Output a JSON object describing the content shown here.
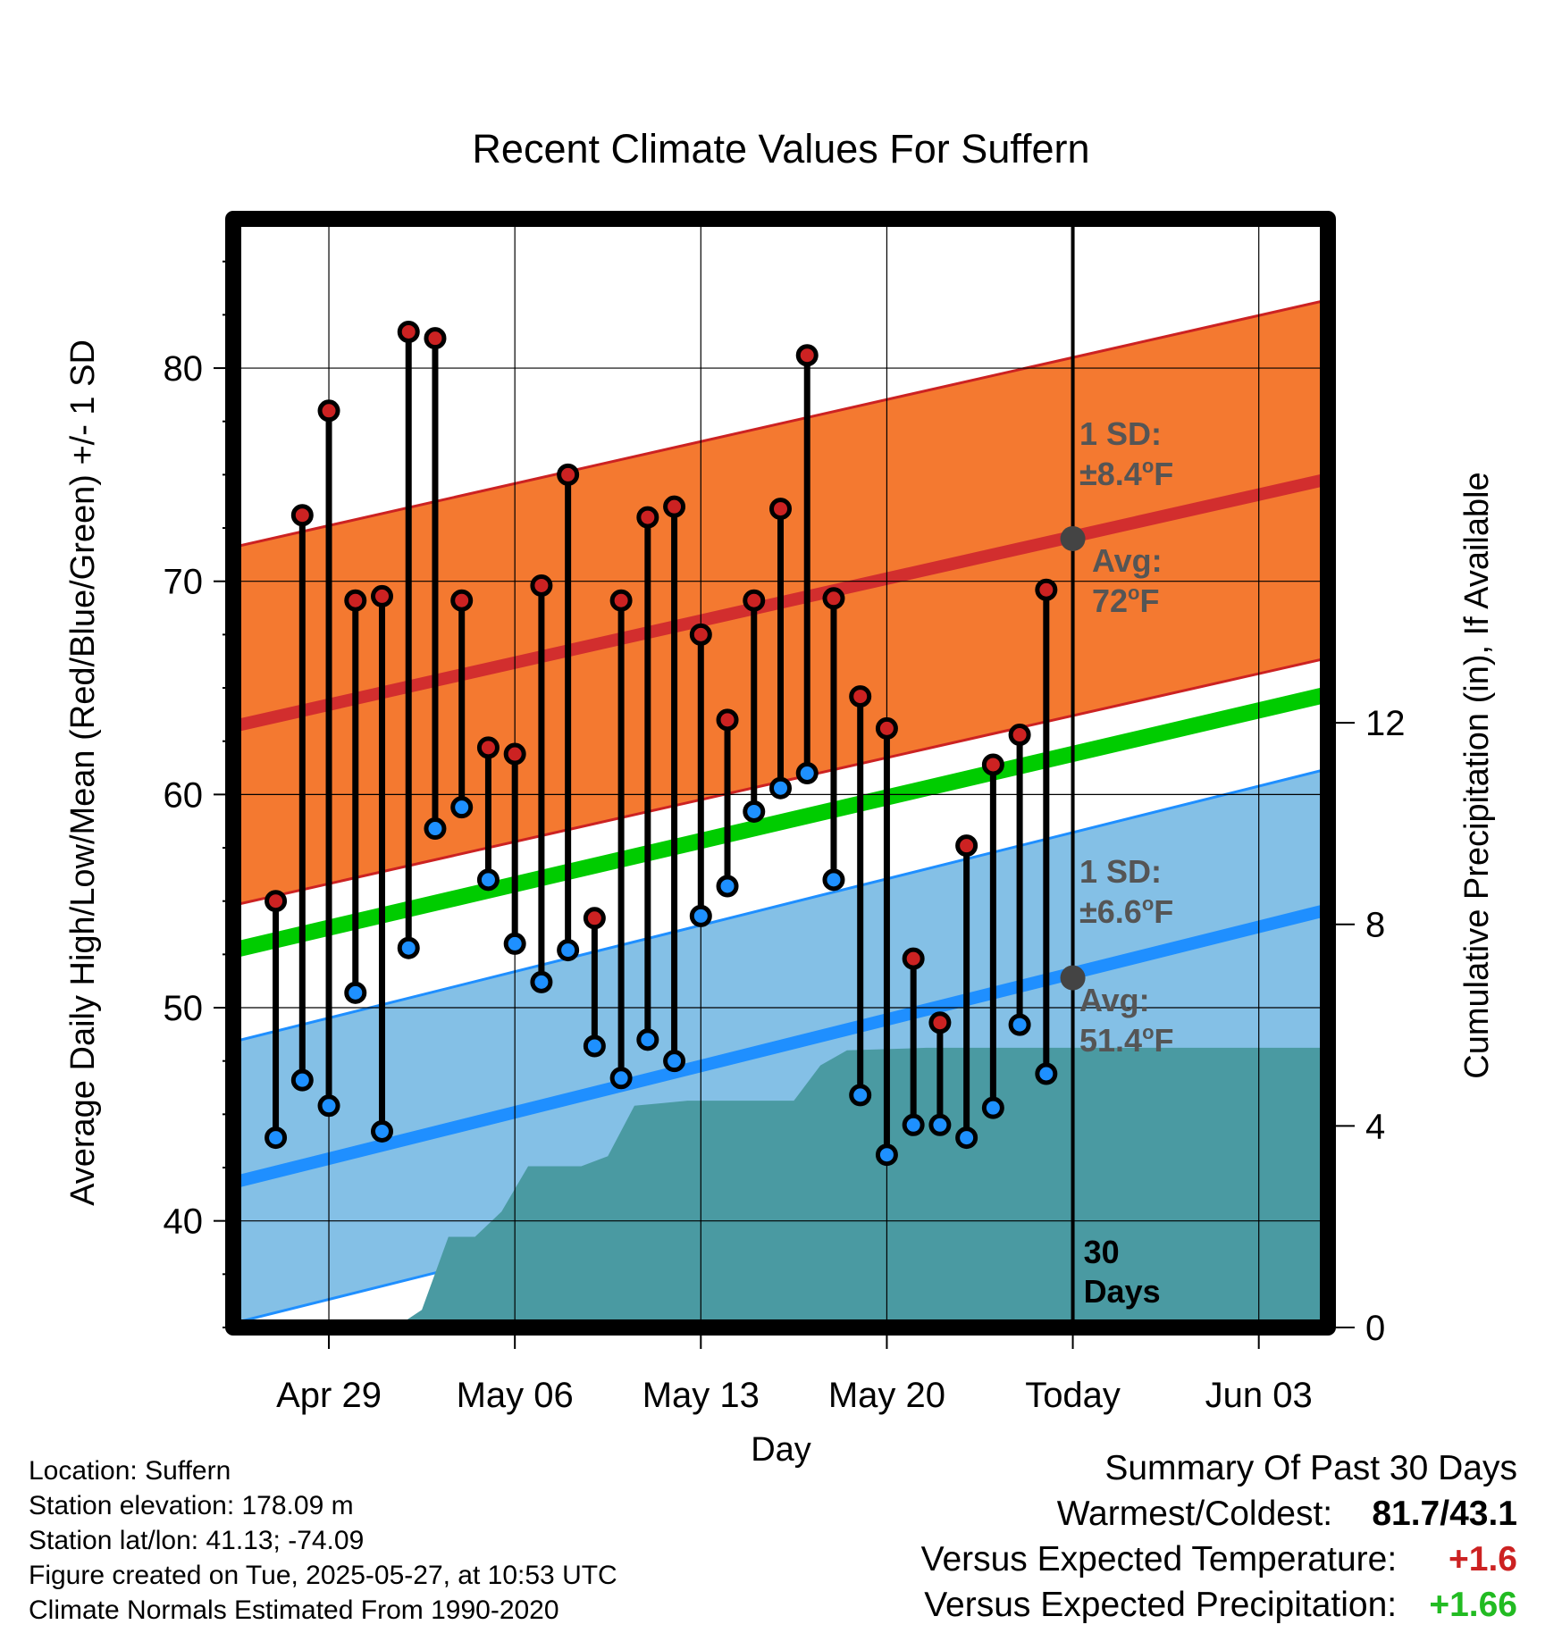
{
  "chart_data": {
    "type": "line",
    "title": "Recent Climate Values For Suffern",
    "xlabel": "Day",
    "ylabel": "Average Daily High/Low/Mean (Red/Blue/Green) +/- 1 SD",
    "y2label": "Cumulative Precipitation (in), If Available",
    "ylim": [
      35,
      87
    ],
    "y2lim": [
      0,
      22
    ],
    "x_tick_labels": [
      "Apr 29",
      "May 06",
      "May 13",
      "May 20",
      "Today",
      "Jun 03"
    ],
    "y_ticks": [
      40,
      50,
      60,
      70,
      80
    ],
    "y2_ticks": [
      0,
      4,
      8,
      12
    ],
    "grid": true,
    "xlim_days_from_apr26": [
      -0.6,
      40.6
    ],
    "today_day": 31,
    "today_label": [
      "30",
      "Days"
    ],
    "days": [
      "Apr 26",
      "Apr 27",
      "Apr 28",
      "Apr 29",
      "Apr 30",
      "May 01",
      "May 02",
      "May 03",
      "May 04",
      "May 05",
      "May 06",
      "May 07",
      "May 08",
      "May 09",
      "May 10",
      "May 11",
      "May 12",
      "May 13",
      "May 14",
      "May 15",
      "May 16",
      "May 17",
      "May 18",
      "May 19",
      "May 20",
      "May 21",
      "May 22",
      "May 23",
      "May 24",
      "May 25",
      "May 26"
    ],
    "observed_high": [
      55.0,
      73.1,
      78.0,
      69.1,
      69.3,
      81.7,
      81.4,
      69.1,
      62.2,
      61.9,
      69.8,
      75.0,
      54.2,
      69.1,
      73.0,
      73.5,
      67.5,
      63.5,
      69.1,
      73.4,
      80.6,
      69.2,
      64.6,
      63.1,
      52.3,
      49.3,
      57.6,
      61.4,
      62.8,
      69.6
    ],
    "observed_low": [
      43.9,
      46.6,
      45.4,
      50.7,
      44.2,
      52.8,
      58.4,
      59.4,
      56.0,
      53.0,
      51.2,
      52.7,
      48.2,
      46.7,
      48.5,
      47.5,
      54.3,
      55.7,
      59.2,
      60.3,
      61.0,
      56.0,
      45.9,
      43.1,
      44.5,
      44.5,
      43.9,
      45.3,
      49.2,
      46.9
    ],
    "normal_high": {
      "start": 63.2,
      "end": 74.8,
      "sd": 8.4,
      "today_avg": 72
    },
    "normal_low": {
      "start": 41.8,
      "end": 54.6,
      "sd": 6.6,
      "today_avg": 51.4
    },
    "normal_mean": {
      "start": 52.7,
      "end": 64.7
    },
    "cumulative_precip": [
      {
        "day": 5.5,
        "value": 0.0
      },
      {
        "day": 6.5,
        "value": 0.35
      },
      {
        "day": 7.5,
        "value": 1.8
      },
      {
        "day": 8.5,
        "value": 1.8
      },
      {
        "day": 9.5,
        "value": 2.3
      },
      {
        "day": 10.5,
        "value": 3.2
      },
      {
        "day": 11.5,
        "value": 3.2
      },
      {
        "day": 12.5,
        "value": 3.2
      },
      {
        "day": 13.5,
        "value": 3.4
      },
      {
        "day": 14.5,
        "value": 4.4
      },
      {
        "day": 15.5,
        "value": 4.45
      },
      {
        "day": 16.5,
        "value": 4.5
      },
      {
        "day": 17.5,
        "value": 4.5
      },
      {
        "day": 18.5,
        "value": 4.5
      },
      {
        "day": 20.5,
        "value": 4.5
      },
      {
        "day": 21.5,
        "value": 5.2
      },
      {
        "day": 22.5,
        "value": 5.5
      },
      {
        "day": 25.5,
        "value": 5.55
      },
      {
        "day": 40.6,
        "value": 5.55
      }
    ],
    "labels": {
      "high_sd": [
        "1 SD:",
        "±8.4",
        "o",
        "F"
      ],
      "high_avg": [
        "Avg:",
        "72",
        "o",
        "F"
      ],
      "low_sd": [
        "1 SD:",
        "±6.6",
        "o",
        "F"
      ],
      "low_avg": [
        "Avg:",
        "51.4",
        "o",
        "F"
      ]
    },
    "colors": {
      "high_band": "#f47930",
      "high_line": "#d22e2e",
      "low_band": "#84c0e6",
      "low_line": "#1f8fff",
      "mean_line": "#00cc00",
      "precip": "#4a9aa2",
      "high_dot": "#cc2222",
      "low_dot": "#1e90ff",
      "avg_dot": "#444444",
      "label_gray": "#555555"
    }
  },
  "info": {
    "location": "Location: Suffern",
    "elevation": "Station elevation: 178.09 m",
    "latlon": "Station lat/lon: 41.13; -74.09",
    "created": "Figure created on Tue, 2025-05-27, at 10:53 UTC",
    "normals": "Climate Normals Estimated From 1990-2020"
  },
  "summary": {
    "heading": "Summary Of Past 30 Days",
    "warmest_label": "Warmest/Coldest:",
    "warmest_value": "81.7/43.1",
    "temp_label": "Versus Expected Temperature:",
    "temp_value": "+1.6",
    "temp_color": "#cc2222",
    "precip_label": "Versus Expected Precipitation:",
    "precip_value": "+1.66",
    "precip_color": "#22bb22"
  }
}
